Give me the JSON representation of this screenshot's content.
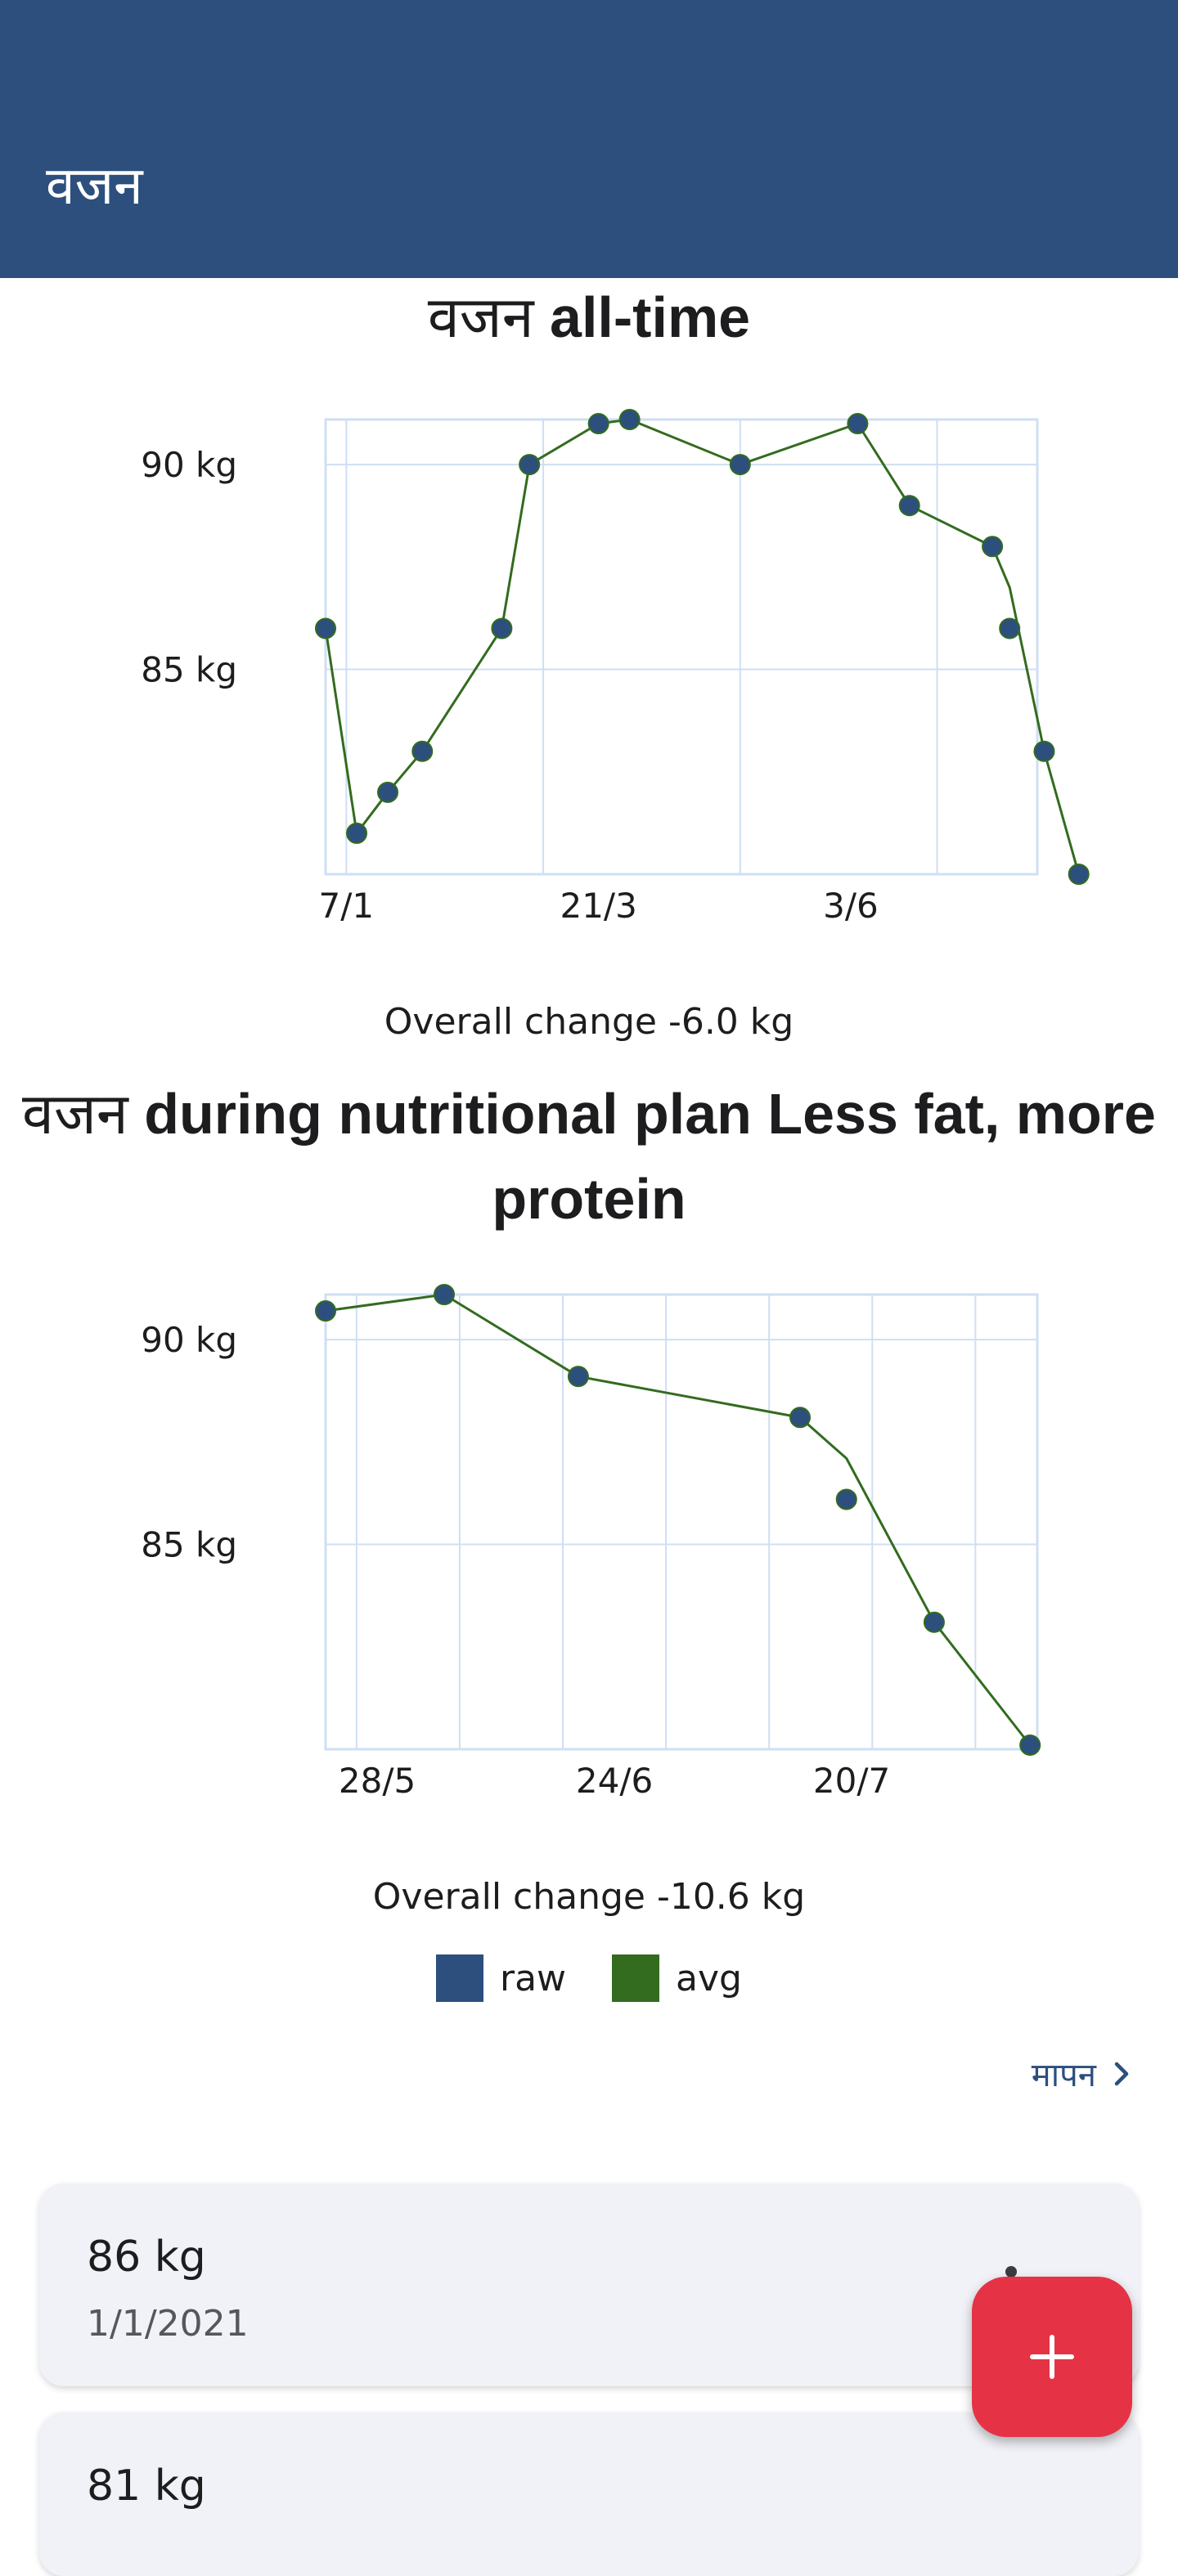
{
  "app_bar": {
    "title": "वजन"
  },
  "charts": [
    {
      "title_metric": "वजन",
      "title_rest": " all-time",
      "change_text": "Overall change -6.0 kg",
      "chart_data": {
        "type": "line",
        "title": "वजन all-time",
        "y_ticks": [
          {
            "value": 90,
            "label": "90 kg"
          },
          {
            "value": 85,
            "label": "85 kg"
          }
        ],
        "ylim": [
          80,
          91.1
        ],
        "x_domain_days": [
          -2,
          204
        ],
        "x_ticks": [
          {
            "date": "7/1",
            "day": 4
          },
          {
            "date": "21/3",
            "day": 77
          },
          {
            "date": "3/6",
            "day": 150
          }
        ],
        "x_grid_days": [
          4,
          61,
          118,
          175
        ],
        "y_grid_values": [
          90,
          85
        ],
        "series": [
          {
            "name": "raw",
            "points": [
              [
                -2,
                86
              ],
              [
                7,
                81
              ],
              [
                16,
                82
              ],
              [
                26,
                83
              ],
              [
                49,
                86
              ],
              [
                57,
                90
              ],
              [
                77,
                91
              ],
              [
                86,
                91.1
              ],
              [
                118,
                90
              ],
              [
                152,
                91
              ],
              [
                167,
                89
              ],
              [
                191,
                88
              ],
              [
                196,
                86
              ],
              [
                206,
                83
              ],
              [
                216,
                80
              ]
            ]
          },
          {
            "name": "avg",
            "points": [
              [
                -2,
                86
              ],
              [
                7,
                81
              ],
              [
                16,
                82
              ],
              [
                26,
                83
              ],
              [
                49,
                86
              ],
              [
                57,
                90
              ],
              [
                77,
                91
              ],
              [
                86,
                91.1
              ],
              [
                118,
                90
              ],
              [
                152,
                91
              ],
              [
                167,
                89
              ],
              [
                191,
                88
              ],
              [
                196,
                87
              ],
              [
                206,
                83
              ],
              [
                216,
                80
              ]
            ]
          }
        ]
      }
    },
    {
      "title_metric": "वजन",
      "title_rest": " during nutritional plan Less fat, more protein",
      "change_text": "Overall change -10.6 kg",
      "chart_data": {
        "type": "line",
        "title": "वजन during nutritional plan Less fat, more protein",
        "y_ticks": [
          {
            "value": 90,
            "label": "90 kg"
          },
          {
            "value": 85,
            "label": "85 kg"
          }
        ],
        "ylim": [
          80,
          91.1
        ],
        "x_domain_days": [
          0,
          69
        ],
        "x_ticks": [
          {
            "date": "28/5",
            "day": 5
          },
          {
            "date": "24/6",
            "day": 28
          },
          {
            "date": "20/7",
            "day": 51
          }
        ],
        "x_grid_days": [
          3,
          13,
          23,
          33,
          43,
          53,
          63
        ],
        "y_grid_values": [
          90,
          85
        ],
        "series": [
          {
            "name": "raw",
            "points": [
              [
                0,
                90.7
              ],
              [
                11.5,
                91.1
              ],
              [
                24.5,
                89.1
              ],
              [
                46,
                88.1
              ],
              [
                50.5,
                86.1
              ],
              [
                59,
                83.1
              ],
              [
                68.3,
                80.1
              ]
            ]
          },
          {
            "name": "avg",
            "points": [
              [
                0,
                90.7
              ],
              [
                11.5,
                91.1
              ],
              [
                24.5,
                89.1
              ],
              [
                46,
                88.1
              ],
              [
                50.5,
                87.1
              ],
              [
                59,
                83.1
              ],
              [
                68.3,
                80.1
              ]
            ]
          }
        ]
      }
    }
  ],
  "legend": [
    {
      "label": "raw",
      "color": "#2c4f7e"
    },
    {
      "label": "avg",
      "color": "#336b1f"
    }
  ],
  "link": {
    "label": "मापन"
  },
  "entries": [
    {
      "value": "86 kg",
      "date": "1/1/2021"
    },
    {
      "value": "81 kg",
      "date": ""
    }
  ],
  "colors": {
    "primary": "#2c4f7e",
    "avg_line": "#336b1f",
    "grid": "#cfdff3",
    "fab": "#e53345"
  },
  "icons": {
    "fab": "plus-icon",
    "link": "chevron-right-icon",
    "entry_menu": "more-vertical-icon"
  }
}
